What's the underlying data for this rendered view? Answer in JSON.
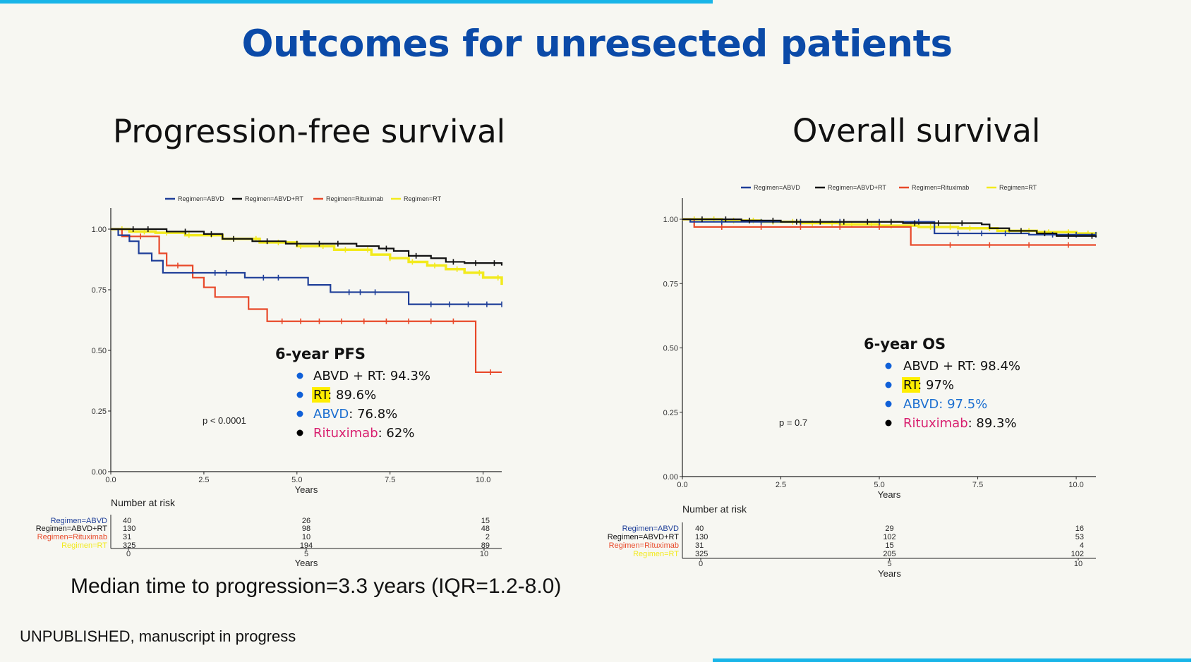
{
  "slide": {
    "title": "Outcomes for unresected patients",
    "median_note": "Median time to progression=3.3 years (IQR=1.2-8.0)",
    "footer": "UNPUBLISHED, manuscript in progress"
  },
  "colors": {
    "ABVD": "#1f3f99",
    "ABVD+RT": "#111111",
    "Rituximab": "#e8492a",
    "RT": "#f2ea1d",
    "title": "#0b4aa8",
    "bullet_blue": "#1060d8",
    "rituximab_text": "#d81e6e",
    "abvd_text": "#1c6fd1",
    "highlight": "#ffee00"
  },
  "chart_data": [
    {
      "type": "line",
      "id": "pfs",
      "title": "Progression-free survival",
      "xlabel": "Years",
      "ylabel": "",
      "xlim": [
        0,
        10.5
      ],
      "ylim": [
        0,
        1
      ],
      "xticks": [
        "0.0",
        "2.5",
        "5.0",
        "7.5",
        "10.0"
      ],
      "xtick_values": [
        0,
        2.5,
        5,
        7.5,
        10
      ],
      "yticks": [
        "0.00",
        "0.25",
        "0.50",
        "0.75",
        "1.00"
      ],
      "ytick_values": [
        0,
        0.25,
        0.5,
        0.75,
        1
      ],
      "grid": false,
      "legend_position": "top",
      "pvalue": "p < 0.0001",
      "series": [
        {
          "name": "Regimen=ABVD",
          "key": "ABVD",
          "points": [
            [
              0,
              1
            ],
            [
              0.2,
              0.975
            ],
            [
              0.5,
              0.95
            ],
            [
              0.75,
              0.9
            ],
            [
              1.1,
              0.87
            ],
            [
              1.4,
              0.82
            ],
            [
              2.2,
              0.82
            ],
            [
              3.6,
              0.8
            ],
            [
              5.3,
              0.77
            ],
            [
              5.9,
              0.74
            ],
            [
              8,
              0.69
            ],
            [
              10.5,
              0.69
            ]
          ],
          "censor_x": [
            2.8,
            3.1,
            4.1,
            4.5,
            6.4,
            6.7,
            7.1,
            8.6,
            9.1,
            9.6,
            10.1,
            10.5
          ]
        },
        {
          "name": "Regimen=ABVD+RT",
          "key": "ABVD+RT",
          "points": [
            [
              0,
              1
            ],
            [
              1.5,
              0.99
            ],
            [
              2.5,
              0.98
            ],
            [
              3,
              0.96
            ],
            [
              3.8,
              0.95
            ],
            [
              4.7,
              0.94
            ],
            [
              6.6,
              0.93
            ],
            [
              7.2,
              0.92
            ],
            [
              7.6,
              0.91
            ],
            [
              8,
              0.89
            ],
            [
              8.6,
              0.88
            ],
            [
              9,
              0.865
            ],
            [
              9.5,
              0.86
            ],
            [
              10.5,
              0.85
            ]
          ],
          "censor_x": [
            0.6,
            1.0,
            2.0,
            2.7,
            3.3,
            4.2,
            5.0,
            5.6,
            6.1,
            7.4,
            8.2,
            9.2,
            9.8,
            10.3
          ]
        },
        {
          "name": "Regimen=Rituximab",
          "key": "Rituximab",
          "points": [
            [
              0,
              1
            ],
            [
              0.3,
              0.97
            ],
            [
              1.3,
              0.9
            ],
            [
              1.5,
              0.85
            ],
            [
              2.2,
              0.8
            ],
            [
              2.5,
              0.76
            ],
            [
              2.8,
              0.72
            ],
            [
              3.7,
              0.67
            ],
            [
              4.2,
              0.62
            ],
            [
              9.8,
              0.62
            ],
            [
              9.8,
              0.41
            ],
            [
              10.5,
              0.41
            ]
          ],
          "censor_x": [
            0.8,
            1.8,
            4.6,
            5.1,
            5.6,
            6.2,
            6.8,
            7.4,
            8.0,
            8.6,
            9.2,
            10.2
          ]
        },
        {
          "name": "Regimen=RT",
          "key": "RT",
          "points": [
            [
              0,
              1
            ],
            [
              0.5,
              0.99
            ],
            [
              1.2,
              0.985
            ],
            [
              2,
              0.975
            ],
            [
              3,
              0.96
            ],
            [
              4,
              0.945
            ],
            [
              5,
              0.93
            ],
            [
              6,
              0.915
            ],
            [
              7,
              0.895
            ],
            [
              7.5,
              0.88
            ],
            [
              8,
              0.865
            ],
            [
              8.5,
              0.85
            ],
            [
              9,
              0.835
            ],
            [
              9.5,
              0.82
            ],
            [
              10,
              0.8
            ],
            [
              10.5,
              0.77
            ]
          ],
          "censor_x": [
            0.3,
            0.9,
            1.5,
            2.1,
            2.7,
            3.3,
            3.9,
            4.5,
            5.1,
            5.7,
            6.3,
            6.9,
            7.5,
            8.1,
            8.7,
            9.3,
            9.9,
            10.4
          ]
        }
      ],
      "annotation": {
        "heading": "6-year PFS",
        "items": [
          {
            "label": "ABVD + RT",
            "value": ": 94.3%",
            "label_style": "plain",
            "bullet": "blue"
          },
          {
            "label": "RT",
            "value": ": 89.6%",
            "label_style": "highlight",
            "bullet": "blue"
          },
          {
            "label": "ABVD",
            "value": ": 76.8%",
            "label_style": "blue",
            "bullet": "blue"
          },
          {
            "label": "Rituximab",
            "value": ": 62%",
            "label_style": "pink",
            "bullet": "black"
          }
        ]
      },
      "risk_table": {
        "title": "Number at risk",
        "xlabel": "Years",
        "times": [
          "0",
          "5",
          "10"
        ],
        "rows": [
          {
            "label": "Regimen=ABVD",
            "key": "ABVD",
            "values": [
              "40",
              "26",
              "15"
            ]
          },
          {
            "label": "Regimen=ABVD+RT",
            "key": "ABVD+RT",
            "values": [
              "130",
              "98",
              "48"
            ]
          },
          {
            "label": "Regimen=Rituximab",
            "key": "Rituximab",
            "values": [
              "31",
              "10",
              "2"
            ]
          },
          {
            "label": "Regimen=RT",
            "key": "RT",
            "values": [
              "325",
              "194",
              "89"
            ]
          }
        ]
      }
    },
    {
      "type": "line",
      "id": "os",
      "title": "Overall survival",
      "xlabel": "Years",
      "ylabel": "",
      "xlim": [
        0,
        10.5
      ],
      "ylim": [
        0,
        1
      ],
      "xticks": [
        "0.0",
        "2.5",
        "5.0",
        "7.5",
        "10.0"
      ],
      "xtick_values": [
        0,
        2.5,
        5,
        7.5,
        10
      ],
      "yticks": [
        "0.00",
        "0.25",
        "0.50",
        "0.75",
        "1.00"
      ],
      "ytick_values": [
        0,
        0.25,
        0.5,
        0.75,
        1
      ],
      "grid": false,
      "legend_position": "top",
      "pvalue": "p = 0.7",
      "series": [
        {
          "name": "Regimen=ABVD",
          "key": "ABVD",
          "points": [
            [
              0,
              1
            ],
            [
              0.2,
              0.99
            ],
            [
              6.4,
              0.99
            ],
            [
              6.4,
              0.945
            ],
            [
              8.8,
              0.945
            ],
            [
              8.8,
              0.94
            ],
            [
              10.5,
              0.94
            ]
          ],
          "censor_x": [
            1.0,
            2.0,
            3.0,
            4.0,
            5.0,
            6.0,
            7.0,
            7.6,
            8.2,
            9.4,
            10.0,
            10.5
          ]
        },
        {
          "name": "Regimen=ABVD+RT",
          "key": "ABVD+RT",
          "points": [
            [
              0,
              1
            ],
            [
              1.5,
              0.995
            ],
            [
              2.5,
              0.99
            ],
            [
              5.6,
              0.985
            ],
            [
              7.6,
              0.98
            ],
            [
              7.8,
              0.965
            ],
            [
              8.3,
              0.955
            ],
            [
              9,
              0.945
            ],
            [
              9.5,
              0.935
            ],
            [
              10.5,
              0.93
            ]
          ],
          "censor_x": [
            0.5,
            1.1,
            1.7,
            2.3,
            2.9,
            3.5,
            4.1,
            4.7,
            5.3,
            5.9,
            6.5,
            7.1,
            8.6,
            9.2,
            9.8,
            10.4
          ]
        },
        {
          "name": "Regimen=Rituximab",
          "key": "Rituximab",
          "points": [
            [
              0,
              1
            ],
            [
              0.3,
              0.97
            ],
            [
              5.8,
              0.97
            ],
            [
              5.8,
              0.9
            ],
            [
              10.5,
              0.9
            ]
          ],
          "censor_x": [
            1.0,
            2.0,
            3.0,
            4.0,
            5.0,
            6.8,
            7.8,
            8.8,
            9.8
          ]
        },
        {
          "name": "Regimen=RT",
          "key": "RT",
          "points": [
            [
              0,
              1
            ],
            [
              1,
              0.995
            ],
            [
              2,
              0.99
            ],
            [
              3,
              0.985
            ],
            [
              4,
              0.98
            ],
            [
              5,
              0.975
            ],
            [
              6,
              0.97
            ],
            [
              7,
              0.965
            ],
            [
              8,
              0.955
            ],
            [
              9,
              0.95
            ],
            [
              10,
              0.945
            ],
            [
              10.5,
              0.94
            ]
          ],
          "censor_x": [
            0.3,
            0.8,
            1.3,
            1.8,
            2.3,
            2.8,
            3.3,
            3.8,
            4.3,
            4.8,
            5.3,
            5.8,
            6.3,
            6.8,
            7.3,
            7.8,
            8.3,
            8.8,
            9.3,
            9.8,
            10.3
          ]
        }
      ],
      "annotation": {
        "heading": "6-year OS",
        "items": [
          {
            "label": "ABVD + RT",
            "value": ": 98.4%",
            "label_style": "plain",
            "bullet": "blue"
          },
          {
            "label": "RT",
            "value": ": 97%",
            "label_style": "highlight",
            "bullet": "blue"
          },
          {
            "label": "ABVD",
            "value": ": 97.5%",
            "label_style": "blue",
            "bullet": "blue"
          },
          {
            "label": "Rituximab",
            "value": ": 89.3%",
            "label_style": "pink",
            "bullet": "black"
          }
        ]
      },
      "risk_table": {
        "title": "Number at risk",
        "xlabel": "Years",
        "times": [
          "0",
          "5",
          "10"
        ],
        "rows": [
          {
            "label": "Regimen=ABVD",
            "key": "ABVD",
            "values": [
              "40",
              "29",
              "16"
            ]
          },
          {
            "label": "Regimen=ABVD+RT",
            "key": "ABVD+RT",
            "values": [
              "130",
              "102",
              "53"
            ]
          },
          {
            "label": "Regimen=Rituximab",
            "key": "Rituximab",
            "values": [
              "31",
              "15",
              "4"
            ]
          },
          {
            "label": "Regimen=RT",
            "key": "RT",
            "values": [
              "325",
              "205",
              "102"
            ]
          }
        ]
      }
    }
  ]
}
